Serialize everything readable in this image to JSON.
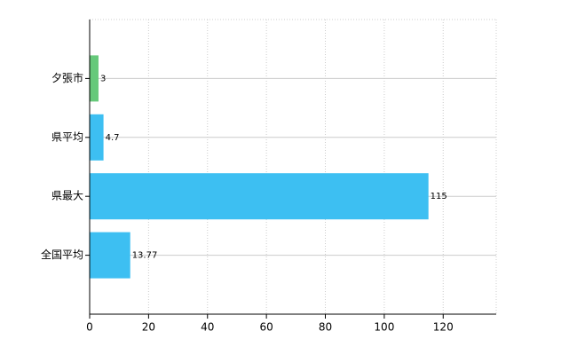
{
  "chart_data": {
    "type": "hbar",
    "categories": [
      "夕張市",
      "県平均",
      "県最大",
      "全国平均"
    ],
    "values": [
      3,
      4.7,
      115,
      13.77
    ],
    "colors": [
      "#66c97a",
      "#3dbff2",
      "#3dbff2",
      "#3dbff2"
    ],
    "xlim": [
      0,
      138
    ],
    "xticks": [
      0,
      20,
      40,
      60,
      80,
      100,
      120
    ],
    "grid": true
  }
}
